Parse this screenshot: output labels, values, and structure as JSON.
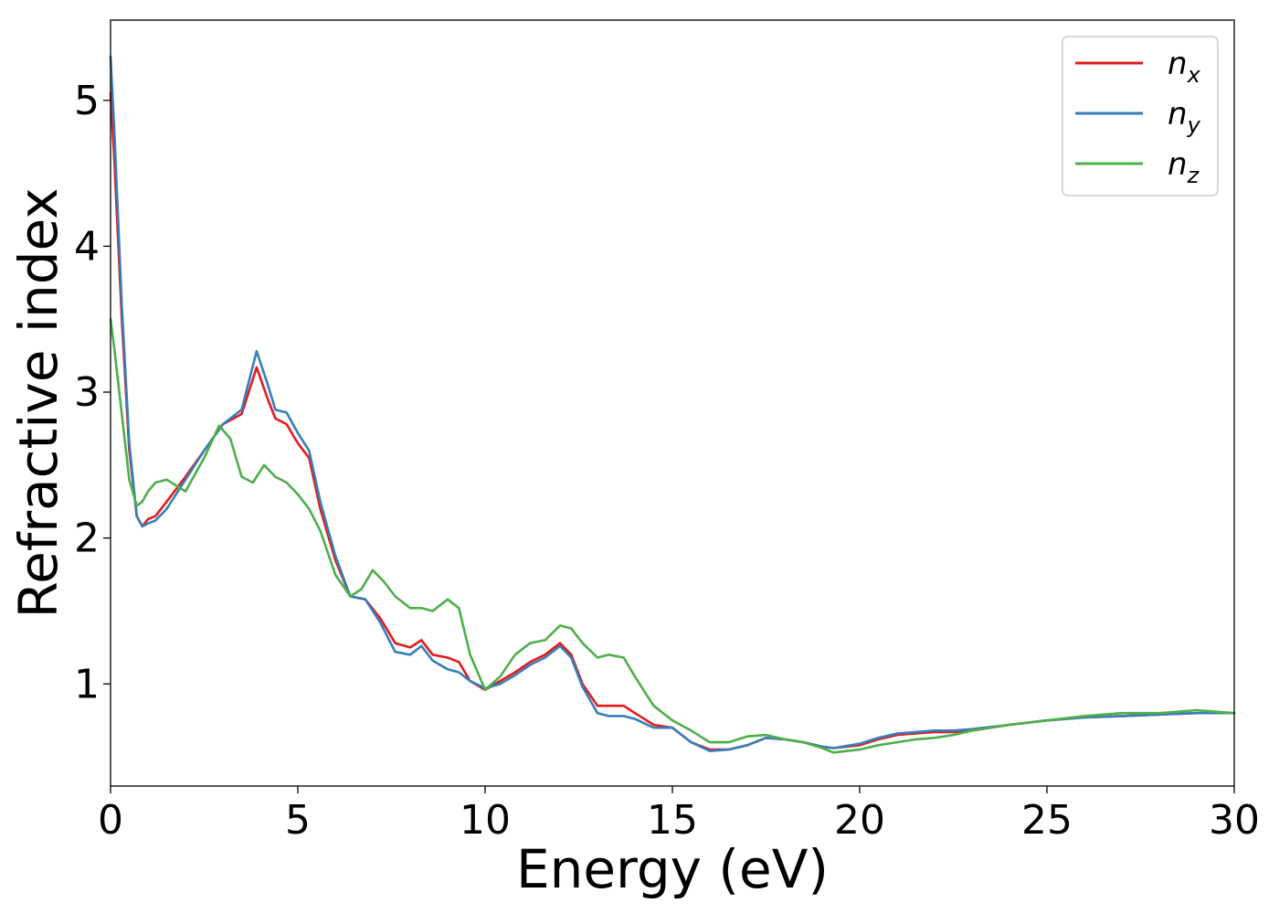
{
  "chart_data": {
    "type": "line",
    "xlabel": "Energy (eV)",
    "ylabel": "Refractive index",
    "xlim": [
      0,
      30
    ],
    "ylim": [
      0.3,
      5.55
    ],
    "xticks": [
      0,
      5,
      10,
      15,
      20,
      25,
      30
    ],
    "yticks": [
      1,
      2,
      3,
      4,
      5
    ],
    "grid": false,
    "legend_position": "top-right",
    "series": [
      {
        "name": "n",
        "subscript": "x",
        "color": "#e41a1c",
        "x": [
          0,
          0.1,
          0.3,
          0.5,
          0.7,
          0.85,
          1.0,
          1.2,
          1.5,
          2.0,
          2.5,
          3.0,
          3.5,
          3.9,
          4.2,
          4.4,
          4.7,
          5.0,
          5.3,
          5.6,
          6.0,
          6.4,
          6.8,
          7.2,
          7.6,
          8.0,
          8.3,
          8.6,
          9.0,
          9.3,
          9.6,
          10.0,
          10.4,
          10.8,
          11.2,
          11.6,
          12.0,
          12.3,
          12.6,
          13.0,
          13.3,
          13.7,
          14.0,
          14.5,
          15.0,
          15.5,
          16.0,
          16.5,
          17.0,
          17.5,
          18.0,
          18.5,
          19.0,
          19.3,
          20.0,
          20.5,
          21.0,
          21.5,
          22.0,
          22.5,
          23.0,
          24.0,
          25.0,
          26.0,
          27.0,
          28.0,
          29.0,
          30.0
        ],
        "values": [
          5.05,
          4.6,
          3.5,
          2.6,
          2.15,
          2.08,
          2.13,
          2.15,
          2.25,
          2.42,
          2.6,
          2.78,
          2.85,
          3.17,
          2.95,
          2.82,
          2.78,
          2.65,
          2.55,
          2.2,
          1.85,
          1.6,
          1.58,
          1.45,
          1.28,
          1.25,
          1.3,
          1.2,
          1.18,
          1.15,
          1.02,
          0.96,
          1.02,
          1.08,
          1.15,
          1.2,
          1.28,
          1.2,
          1.0,
          0.85,
          0.85,
          0.85,
          0.8,
          0.72,
          0.7,
          0.6,
          0.55,
          0.55,
          0.58,
          0.63,
          0.62,
          0.6,
          0.57,
          0.56,
          0.58,
          0.62,
          0.65,
          0.66,
          0.67,
          0.67,
          0.68,
          0.72,
          0.75,
          0.77,
          0.78,
          0.79,
          0.8,
          0.8
        ]
      },
      {
        "name": "n",
        "subscript": "y",
        "color": "#377eb8",
        "x": [
          0,
          0.1,
          0.3,
          0.5,
          0.7,
          0.85,
          1.0,
          1.2,
          1.5,
          2.0,
          2.5,
          3.0,
          3.5,
          3.9,
          4.2,
          4.4,
          4.7,
          5.0,
          5.3,
          5.6,
          6.0,
          6.4,
          6.8,
          7.2,
          7.6,
          8.0,
          8.3,
          8.6,
          9.0,
          9.3,
          9.6,
          10.0,
          10.4,
          10.8,
          11.2,
          11.6,
          12.0,
          12.3,
          12.6,
          13.0,
          13.3,
          13.7,
          14.0,
          14.5,
          15.0,
          15.5,
          16.0,
          16.5,
          17.0,
          17.5,
          18.0,
          18.5,
          19.0,
          19.3,
          20.0,
          20.5,
          21.0,
          21.5,
          22.0,
          22.5,
          23.0,
          24.0,
          25.0,
          26.0,
          27.0,
          28.0,
          29.0,
          30.0
        ],
        "values": [
          5.3,
          4.8,
          3.6,
          2.65,
          2.15,
          2.08,
          2.1,
          2.12,
          2.2,
          2.4,
          2.6,
          2.78,
          2.88,
          3.28,
          3.05,
          2.88,
          2.86,
          2.72,
          2.6,
          2.25,
          1.88,
          1.6,
          1.58,
          1.42,
          1.22,
          1.2,
          1.26,
          1.16,
          1.1,
          1.08,
          1.02,
          0.97,
          1.0,
          1.06,
          1.13,
          1.18,
          1.26,
          1.18,
          0.98,
          0.8,
          0.78,
          0.78,
          0.76,
          0.7,
          0.7,
          0.6,
          0.54,
          0.55,
          0.58,
          0.63,
          0.62,
          0.6,
          0.57,
          0.56,
          0.59,
          0.63,
          0.66,
          0.67,
          0.68,
          0.68,
          0.69,
          0.72,
          0.75,
          0.77,
          0.78,
          0.79,
          0.8,
          0.8
        ]
      },
      {
        "name": "n",
        "subscript": "z",
        "color": "#4daf4a",
        "x": [
          0,
          0.1,
          0.3,
          0.5,
          0.7,
          0.85,
          1.0,
          1.2,
          1.5,
          2.0,
          2.5,
          2.9,
          3.2,
          3.5,
          3.8,
          4.1,
          4.4,
          4.7,
          5.0,
          5.3,
          5.6,
          6.0,
          6.4,
          6.7,
          7.0,
          7.3,
          7.6,
          8.0,
          8.3,
          8.6,
          9.0,
          9.3,
          9.6,
          10.0,
          10.4,
          10.8,
          11.2,
          11.6,
          12.0,
          12.3,
          12.6,
          13.0,
          13.3,
          13.7,
          14.0,
          14.5,
          15.0,
          15.5,
          16.0,
          16.5,
          17.0,
          17.5,
          18.0,
          18.5,
          19.0,
          19.3,
          20.0,
          20.5,
          21.0,
          21.5,
          22.0,
          22.5,
          23.0,
          24.0,
          25.0,
          26.0,
          27.0,
          28.0,
          29.0,
          30.0
        ],
        "values": [
          3.5,
          3.3,
          2.85,
          2.4,
          2.22,
          2.25,
          2.32,
          2.38,
          2.4,
          2.32,
          2.55,
          2.77,
          2.68,
          2.42,
          2.38,
          2.5,
          2.42,
          2.38,
          2.3,
          2.2,
          2.05,
          1.75,
          1.6,
          1.65,
          1.78,
          1.7,
          1.6,
          1.52,
          1.52,
          1.5,
          1.58,
          1.52,
          1.2,
          0.96,
          1.05,
          1.2,
          1.28,
          1.3,
          1.4,
          1.38,
          1.28,
          1.18,
          1.2,
          1.18,
          1.05,
          0.85,
          0.75,
          0.68,
          0.6,
          0.6,
          0.64,
          0.65,
          0.62,
          0.6,
          0.56,
          0.53,
          0.55,
          0.58,
          0.6,
          0.62,
          0.63,
          0.65,
          0.68,
          0.72,
          0.75,
          0.78,
          0.8,
          0.8,
          0.82,
          0.8
        ]
      }
    ]
  }
}
